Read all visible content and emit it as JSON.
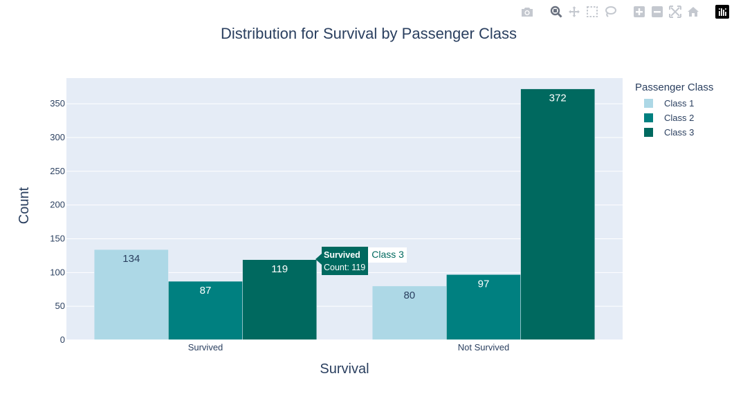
{
  "toolbar": {
    "buttons": [
      {
        "name": "camera-icon",
        "label": "Download plot as a png"
      },
      {
        "name": "zoom-icon",
        "label": "Zoom"
      },
      {
        "name": "pan-icon",
        "label": "Pan"
      },
      {
        "name": "box-select-icon",
        "label": "Box Select"
      },
      {
        "name": "lasso-select-icon",
        "label": "Lasso Select"
      },
      {
        "name": "zoom-in-icon",
        "label": "Zoom in"
      },
      {
        "name": "zoom-out-icon",
        "label": "Zoom out"
      },
      {
        "name": "autoscale-icon",
        "label": "Autoscale"
      },
      {
        "name": "reset-axes-icon",
        "label": "Reset axes"
      },
      {
        "name": "plotly-logo-icon",
        "label": "Produced with Plotly"
      }
    ]
  },
  "chart_data": {
    "type": "bar",
    "title": "Distribution for Survival by Passenger Class",
    "xlabel": "Survival",
    "ylabel": "Count",
    "categories": [
      "Survived",
      "Not Survived"
    ],
    "series": [
      {
        "name": "Class 1",
        "color": "#add8e6",
        "values": [
          134,
          80
        ]
      },
      {
        "name": "Class 2",
        "color": "#008080",
        "values": [
          87,
          97
        ]
      },
      {
        "name": "Class 3",
        "color": "#00695f",
        "values": [
          119,
          372
        ]
      }
    ],
    "ylim": [
      0,
      388
    ],
    "yticks": [
      0,
      50,
      100,
      150,
      200,
      250,
      300,
      350
    ],
    "grid": true,
    "background": "#e5ecf6",
    "legend": {
      "title": "Passenger Class",
      "position": "right"
    }
  },
  "tooltip": {
    "category": "Survived",
    "count_text": "Count: 119",
    "series": "Class 3"
  }
}
